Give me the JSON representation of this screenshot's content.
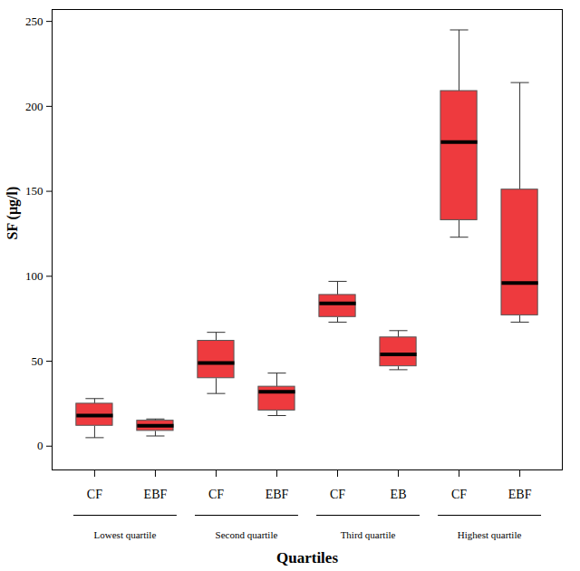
{
  "chart_data": {
    "type": "box",
    "x_label": "Quartiles",
    "y_label": "SF (µg/l)",
    "categories": [
      "CF",
      "EBF",
      "CF",
      "EBF",
      "CF",
      "EB",
      "CF",
      "EBF"
    ],
    "groups": [
      "Lowest quartile",
      "Second quartile",
      "Third quartile",
      "Highest quartile"
    ],
    "min": [
      5,
      6,
      31,
      18,
      73,
      45,
      123,
      73
    ],
    "q1": [
      12,
      9,
      40,
      21,
      76,
      47,
      133,
      77
    ],
    "median": [
      18,
      12,
      49,
      32,
      84,
      54,
      179,
      96
    ],
    "q3": [
      25,
      15,
      62,
      35,
      89,
      64,
      209,
      151
    ],
    "max": [
      28,
      16,
      67,
      43,
      97,
      68,
      245,
      214
    ],
    "color": "#ee3a3e",
    "ylim": [
      -14,
      257
    ],
    "yticks": [
      0,
      50,
      100,
      150,
      200,
      250
    ],
    "grid": false
  }
}
